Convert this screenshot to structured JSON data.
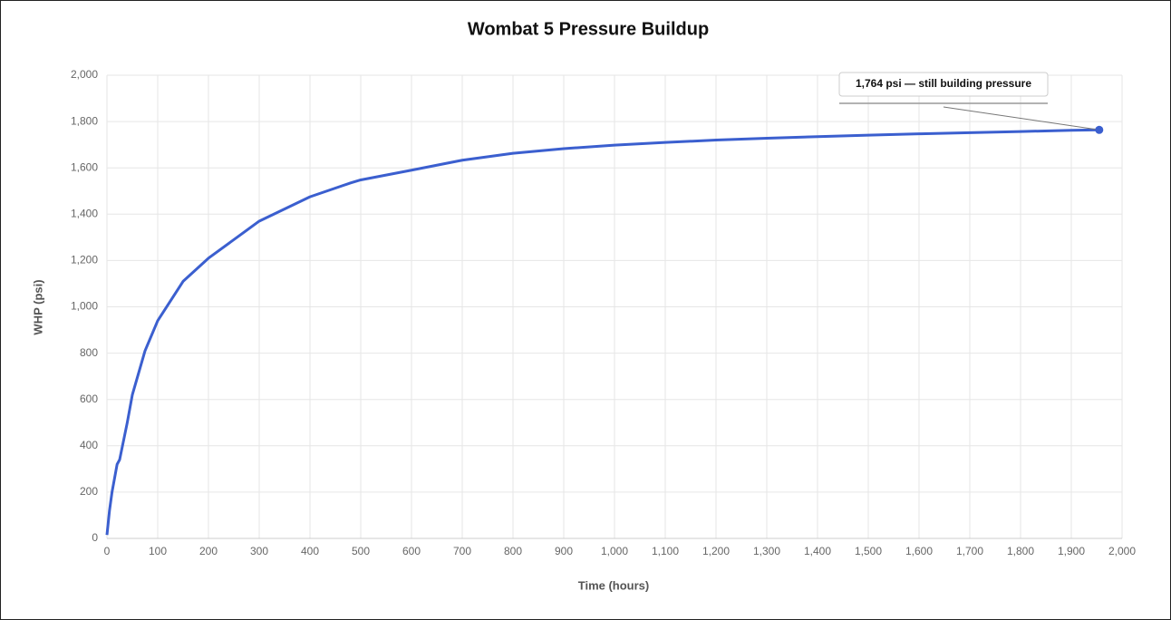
{
  "chart_data": {
    "type": "line",
    "title": "Wombat 5 Pressure Buildup",
    "xlabel": "Time (hours)",
    "ylabel": "WHP (psi)",
    "x": [
      0,
      5,
      10,
      20,
      25,
      40,
      50,
      75,
      100,
      150,
      200,
      300,
      400,
      480,
      500,
      600,
      700,
      800,
      900,
      1000,
      1100,
      1200,
      1300,
      1400,
      1500,
      1600,
      1700,
      1800,
      1900,
      1955
    ],
    "values": [
      15,
      120,
      200,
      320,
      340,
      500,
      620,
      810,
      940,
      1110,
      1210,
      1370,
      1475,
      1535,
      1548,
      1590,
      1633,
      1663,
      1683,
      1698,
      1710,
      1720,
      1728,
      1735,
      1741,
      1747,
      1752,
      1757,
      1762,
      1764
    ],
    "color": "#3b5fcf",
    "xlim": [
      0,
      2000
    ],
    "xticks": [
      0,
      100,
      200,
      300,
      400,
      500,
      600,
      700,
      800,
      900,
      {
        "value": 1000,
        "label": "1,000"
      },
      {
        "value": 1100,
        "label": "1,100"
      },
      {
        "value": 1200,
        "label": "1,200"
      },
      {
        "value": 1300,
        "label": "1,300"
      },
      {
        "value": 1400,
        "label": "1,400"
      },
      {
        "value": 1500,
        "label": "1,500"
      },
      {
        "value": 1600,
        "label": "1,600"
      },
      {
        "value": 1700,
        "label": "1,700"
      },
      {
        "value": 1800,
        "label": "1,800"
      },
      {
        "value": 1900,
        "label": "1,900"
      },
      {
        "value": 2000,
        "label": "2,000"
      }
    ],
    "ylim": [
      0,
      2000
    ],
    "yticks": [
      0,
      200,
      400,
      600,
      800,
      {
        "value": 1000,
        "label": "1,000"
      },
      {
        "value": 1200,
        "label": "1,200"
      },
      {
        "value": 1400,
        "label": "1,400"
      },
      {
        "value": 1600,
        "label": "1,600"
      },
      {
        "value": 1800,
        "label": "1,800"
      },
      {
        "value": 2000,
        "label": "2,000"
      }
    ],
    "grid": true,
    "annotation": "1,764 psi — still building pressure"
  }
}
